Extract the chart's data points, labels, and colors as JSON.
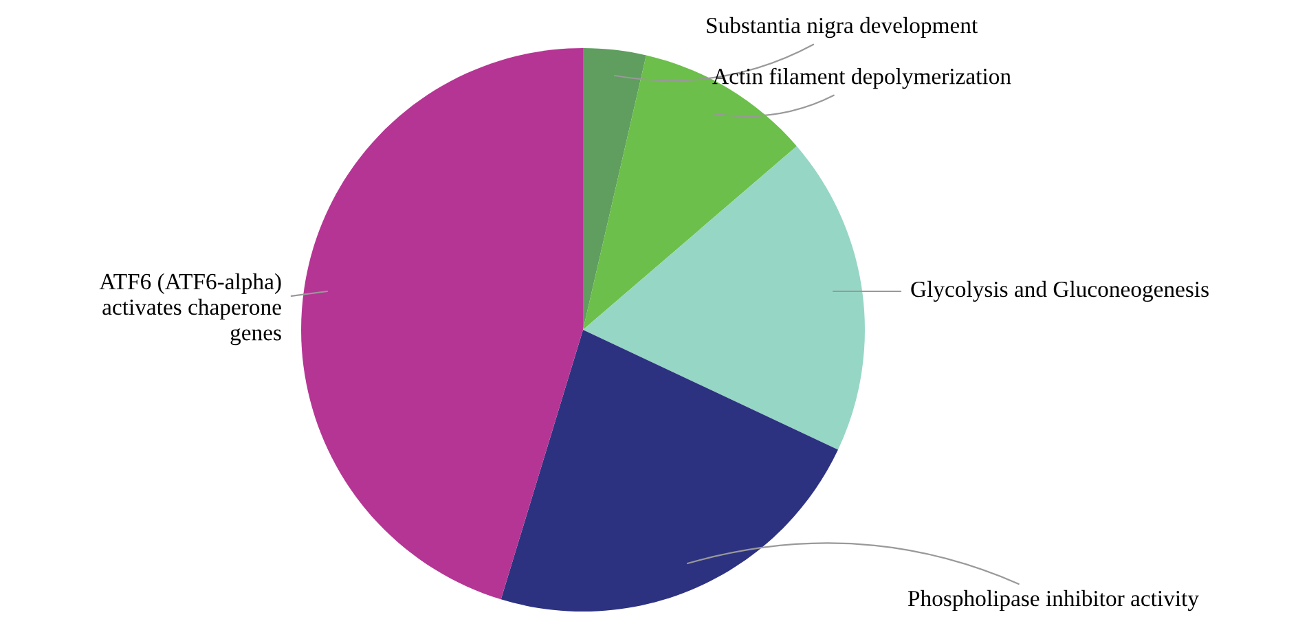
{
  "chart_data": {
    "type": "pie",
    "categories": [
      "Substantia nigra development",
      "Actin filament depolymerization",
      "Glycolysis and Gluconeogenesis",
      "Phospholipase inhibitor activity",
      "ATF6 (ATF6-alpha)\nactivates chaperone\ngenes"
    ],
    "values": [
      3.6,
      10.1,
      18.3,
      22.7,
      45.3
    ],
    "colors": [
      "#5f9e5e",
      "#6cbf4a",
      "#96d6c4",
      "#2d3280",
      "#b53594"
    ],
    "legend": false
  }
}
